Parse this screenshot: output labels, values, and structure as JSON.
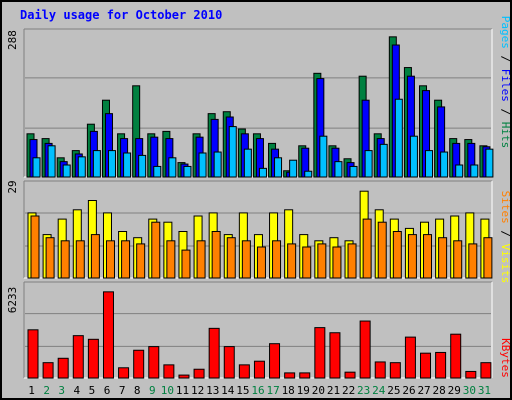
{
  "chart_data": [
    {
      "type": "bar",
      "title": "Daily usage for October 2010",
      "panel": "hits",
      "ymax_label": "288",
      "categories": [
        "1",
        "2",
        "3",
        "4",
        "5",
        "6",
        "7",
        "8",
        "9",
        "10",
        "11",
        "12",
        "13",
        "14",
        "15",
        "16",
        "17",
        "18",
        "19",
        "20",
        "21",
        "22",
        "23",
        "24",
        "25",
        "26",
        "27",
        "28",
        "29",
        "30",
        "31"
      ],
      "weekend_days": [
        "2",
        "3",
        "9",
        "10",
        "16",
        "17",
        "23",
        "24",
        "30",
        "31"
      ],
      "legend": [
        "Pages",
        "Files",
        "Hits"
      ],
      "series": [
        {
          "name": "Hits",
          "color": "#008040",
          "values": [
            90,
            80,
            40,
            55,
            110,
            160,
            90,
            190,
            90,
            95,
            30,
            90,
            132,
            136,
            100,
            90,
            70,
            13,
            65,
            216,
            65,
            38,
            210,
            90,
            292,
            228,
            190,
            160,
            80,
            78,
            65
          ]
        },
        {
          "name": "Files",
          "color": "#0000ff",
          "values": [
            78,
            70,
            32,
            48,
            95,
            132,
            80,
            80,
            83,
            80,
            27,
            83,
            120,
            125,
            90,
            80,
            58,
            10,
            60,
            205,
            60,
            30,
            160,
            80,
            275,
            210,
            180,
            146,
            70,
            70,
            63
          ]
        },
        {
          "name": "Pages",
          "color": "#00c0ff",
          "values": [
            40,
            65,
            25,
            42,
            55,
            55,
            50,
            45,
            22,
            40,
            22,
            50,
            52,
            105,
            58,
            18,
            40,
            35,
            12,
            85,
            32,
            22,
            55,
            68,
            162,
            85,
            55,
            52,
            25,
            25,
            58
          ]
        }
      ]
    },
    {
      "type": "bar",
      "panel": "visits",
      "ymax_label": "29",
      "legend": [
        "Sites",
        "Visits"
      ],
      "series": [
        {
          "name": "Visits",
          "color": "#ffff00",
          "values": [
            21,
            14,
            19,
            22,
            25,
            21,
            15,
            13,
            19,
            18,
            15,
            20,
            21,
            14,
            21,
            14,
            21,
            22,
            14,
            12,
            13,
            12,
            28,
            22,
            19,
            16,
            18,
            19,
            20,
            21,
            19
          ]
        },
        {
          "name": "Sites",
          "color": "#ff8000",
          "values": [
            20,
            13,
            12,
            12,
            14,
            12,
            12,
            11,
            18,
            12,
            9,
            12,
            15,
            13,
            12,
            10,
            12,
            11,
            10,
            11,
            10,
            11,
            19,
            18,
            15,
            14,
            14,
            13,
            12,
            11,
            13
          ]
        }
      ]
    },
    {
      "type": "bar",
      "panel": "kbytes",
      "ymax_label": "6233",
      "legend": [
        "KBytes"
      ],
      "series": [
        {
          "name": "KBytes",
          "color": "#ff0000",
          "values": [
            3300,
            1050,
            1350,
            2900,
            2650,
            5900,
            700,
            1900,
            2150,
            900,
            200,
            600,
            3400,
            2150,
            900,
            1150,
            2350,
            350,
            350,
            3450,
            3100,
            400,
            3900,
            1100,
            1050,
            2800,
            1700,
            1750,
            3000,
            450,
            1050
          ]
        }
      ]
    }
  ]
}
